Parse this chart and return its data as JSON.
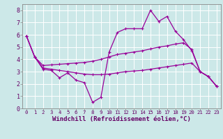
{
  "background_color": "#cce8e8",
  "line_color": "#990099",
  "grid_color": "#ffffff",
  "xlabel": "Windchill (Refroidissement éolien,°C)",
  "xlabel_fontsize": 6.5,
  "ytick_fontsize": 6,
  "xtick_fontsize": 5.2,
  "xlabel_color": "#660066",
  "tick_color": "#660066",
  "spine_color": "#888888",
  "xlim": [
    -0.5,
    23.5
  ],
  "ylim": [
    0,
    8.5
  ],
  "xticks": [
    0,
    1,
    2,
    3,
    4,
    5,
    6,
    7,
    8,
    9,
    10,
    11,
    12,
    13,
    14,
    15,
    16,
    17,
    18,
    19,
    20,
    21,
    22,
    23
  ],
  "yticks": [
    0,
    1,
    2,
    3,
    4,
    5,
    6,
    7,
    8
  ],
  "line1_x": [
    0,
    1,
    2,
    3,
    4,
    5,
    6,
    7,
    8,
    9,
    10,
    11,
    12,
    13,
    14,
    15,
    16,
    17,
    18,
    19,
    20,
    21,
    22,
    23
  ],
  "line1_y": [
    5.9,
    4.2,
    3.2,
    3.1,
    2.5,
    2.9,
    2.3,
    2.1,
    0.5,
    0.9,
    4.6,
    6.2,
    6.5,
    6.5,
    6.5,
    8.0,
    7.1,
    7.5,
    6.3,
    5.6,
    4.7,
    3.0,
    2.6,
    1.8
  ],
  "line2_x": [
    0,
    1,
    2,
    3,
    4,
    5,
    6,
    7,
    8,
    9,
    10,
    11,
    12,
    13,
    14,
    15,
    16,
    17,
    18,
    19,
    20,
    21,
    22,
    23
  ],
  "line2_y": [
    5.9,
    4.2,
    3.5,
    3.55,
    3.6,
    3.65,
    3.7,
    3.75,
    3.85,
    4.0,
    4.2,
    4.4,
    4.5,
    4.6,
    4.7,
    4.85,
    5.0,
    5.1,
    5.25,
    5.35,
    4.8,
    3.0,
    2.6,
    1.8
  ],
  "line3_x": [
    0,
    1,
    2,
    3,
    4,
    5,
    6,
    7,
    8,
    9,
    10,
    11,
    12,
    13,
    14,
    15,
    16,
    17,
    18,
    19,
    20,
    21,
    22,
    23
  ],
  "line3_y": [
    5.9,
    4.2,
    3.3,
    3.2,
    3.1,
    3.0,
    2.9,
    2.8,
    2.75,
    2.75,
    2.8,
    2.9,
    3.0,
    3.05,
    3.1,
    3.2,
    3.3,
    3.4,
    3.5,
    3.6,
    3.7,
    3.0,
    2.6,
    1.8
  ]
}
